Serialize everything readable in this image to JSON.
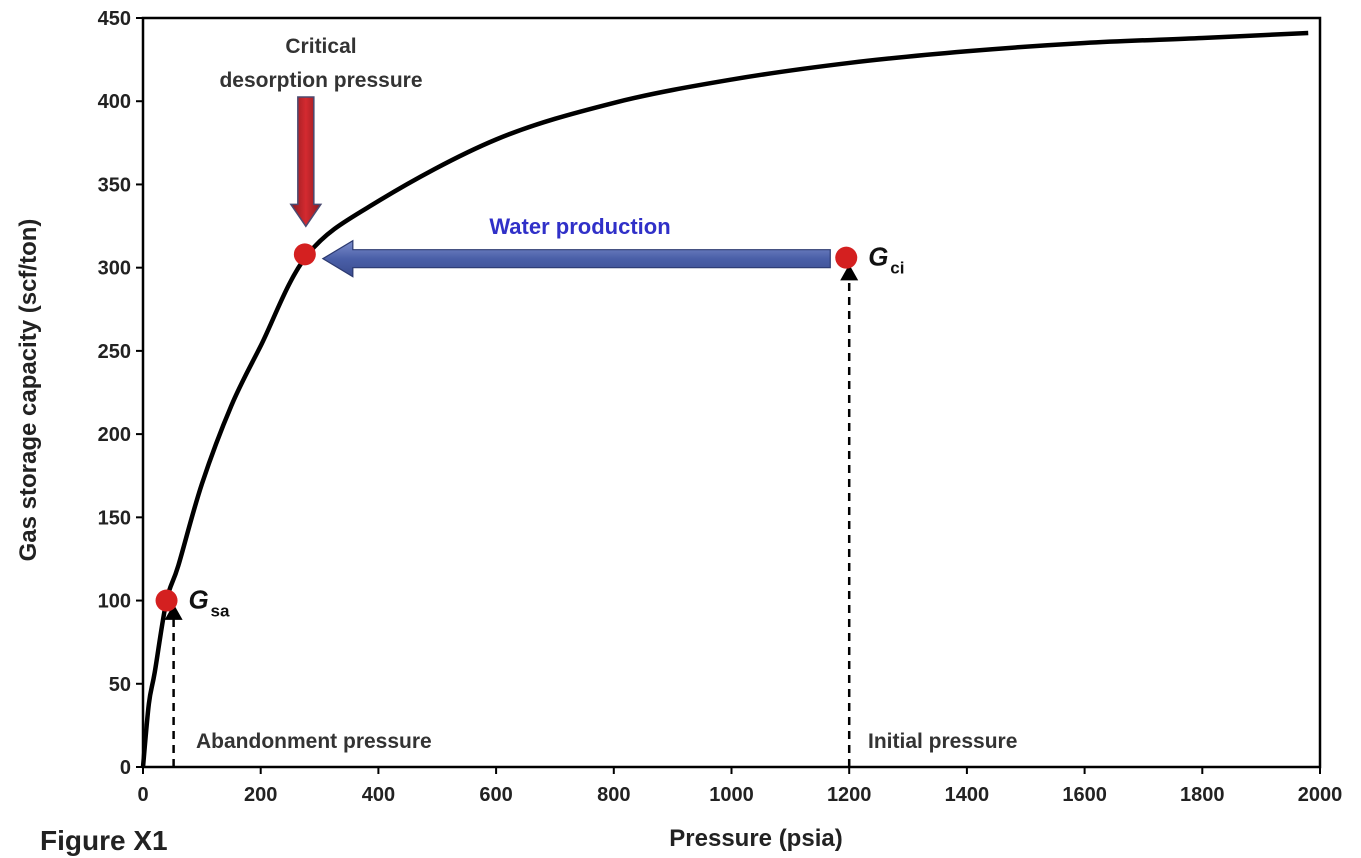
{
  "caption": "Figure X1",
  "chart_data": {
    "type": "line",
    "xlabel": "Pressure (psia)",
    "ylabel": "Gas storage capacity (scf/ton)",
    "xlim": [
      0,
      2000
    ],
    "ylim": [
      0,
      450
    ],
    "x_ticks": [
      "0",
      "200",
      "400",
      "600",
      "800",
      "1000",
      "1200",
      "1400",
      "1600",
      "1800",
      "2000"
    ],
    "y_ticks": [
      "0",
      "50",
      "100",
      "150",
      "200",
      "250",
      "300",
      "350",
      "400",
      "450"
    ],
    "series": [
      {
        "x": [
          0,
          10,
          20,
          40,
          60,
          100,
          150,
          200,
          280,
          400,
          600,
          800,
          1000,
          1200,
          1400,
          1600,
          1800,
          1980
        ],
        "y": [
          0,
          38,
          57,
          100,
          121,
          170,
          217,
          253,
          308,
          340,
          377,
          399,
          413,
          423,
          430,
          435,
          438,
          441
        ]
      }
    ],
    "points": [
      {
        "id": "critical",
        "x": 275,
        "y": 308,
        "label": "",
        "sub": ""
      },
      {
        "id": "gci",
        "x": 1195,
        "y": 306,
        "label": "G",
        "sub": "ci"
      },
      {
        "id": "gsa",
        "x": 40,
        "y": 100,
        "label": "G",
        "sub": "sa"
      }
    ],
    "annotations": {
      "critical_line1": "Critical",
      "critical_line2": "desorption pressure",
      "water": "Water production",
      "abandonment": "Abandonment pressure",
      "initial": "Initial pressure"
    },
    "guides": [
      {
        "id": "abandonment-guide",
        "x": 52,
        "y_from": 0,
        "y_to": 98
      },
      {
        "id": "initial-guide",
        "x": 1200,
        "y_from": 0,
        "y_to": 302
      }
    ],
    "colors": {
      "curve": "#000000",
      "point": "#d42020",
      "water_arrow": "#4a5fa8",
      "critical_arrow": "#c8202a",
      "water_text": "#3030c8"
    }
  }
}
